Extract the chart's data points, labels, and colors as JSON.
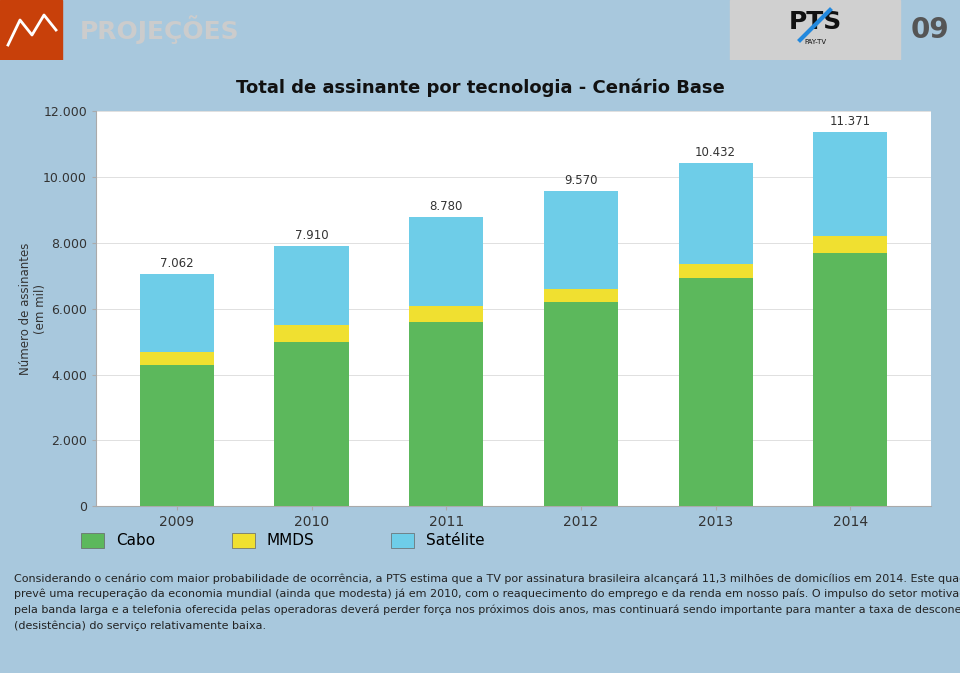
{
  "title": "Total de assinante por tecnologia - Cenário Base",
  "years": [
    "2009",
    "2010",
    "2011",
    "2012",
    "2013",
    "2014"
  ],
  "cabo": [
    4300,
    5000,
    5600,
    6200,
    6950,
    7700
  ],
  "mmds": [
    400,
    500,
    500,
    400,
    400,
    500
  ],
  "satelite_total": [
    7062,
    7910,
    8780,
    9570,
    10432,
    11371
  ],
  "total_labels": [
    "7.062",
    "7.910",
    "8.780",
    "9.570",
    "10.432",
    "11.371"
  ],
  "color_cabo": "#5cb85c",
  "color_mmds": "#f0e030",
  "color_satelite": "#6ecde8",
  "ylabel_line1": "Número de assinantes",
  "ylabel_line2": "(em mil)",
  "ylim": [
    0,
    12000
  ],
  "yticks": [
    0,
    2000,
    4000,
    6000,
    8000,
    10000,
    12000
  ],
  "ytick_labels": [
    "0",
    "2.000",
    "4.000",
    "6.000",
    "8.000",
    "10.000",
    "12.000"
  ],
  "bg_chart": "#ffffff",
  "bg_outer": "#a8c8dd",
  "bg_header": "#4a4a4a",
  "bg_title_band": "#b8d4e5",
  "legend_cabo": "Cabo",
  "legend_mmds": "MMDS",
  "legend_satelite": "Satélite",
  "bar_width": 0.55,
  "header_text": "PROJEÇÕES",
  "page_num": "09"
}
